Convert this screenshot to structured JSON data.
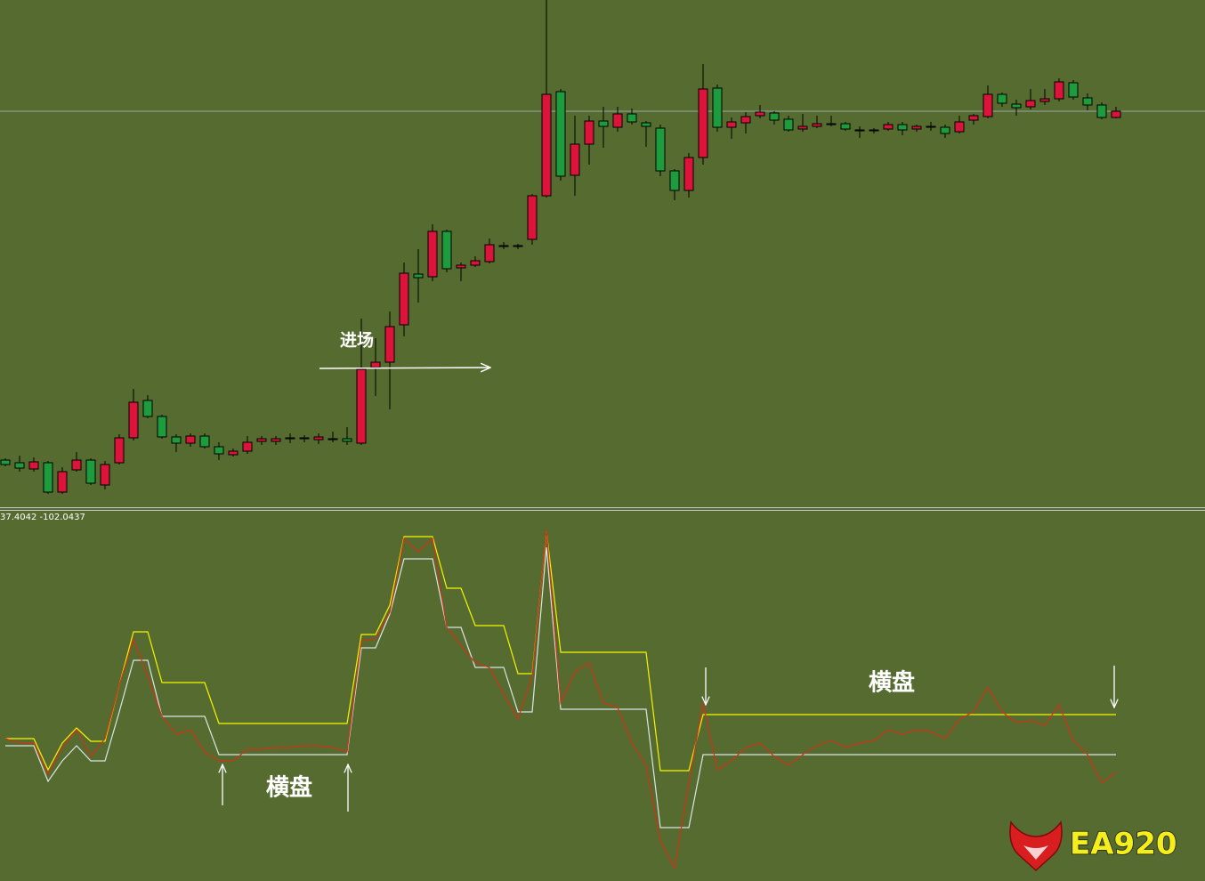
{
  "chart_data": [
    {
      "type": "candlestick",
      "ylim": [
        0,
        570
      ],
      "up_color": "#dc143c",
      "down_color": "#1e9b3c",
      "reference_line": 445,
      "candles": [
        [
          53,
          55,
          46,
          48
        ],
        [
          50,
          58,
          40,
          44
        ],
        [
          43,
          56,
          40,
          51
        ],
        [
          50,
          52,
          15,
          17
        ],
        [
          17,
          45,
          15,
          40
        ],
        [
          42,
          62,
          40,
          53
        ],
        [
          53,
          55,
          25,
          27
        ],
        [
          25,
          52,
          20,
          48
        ],
        [
          50,
          82,
          48,
          78
        ],
        [
          78,
          133,
          75,
          118
        ],
        [
          120,
          126,
          100,
          102
        ],
        [
          102,
          104,
          77,
          79
        ],
        [
          79,
          82,
          62,
          72
        ],
        [
          72,
          83,
          68,
          80
        ],
        [
          80,
          83,
          66,
          68
        ],
        [
          68,
          73,
          53,
          60
        ],
        [
          59,
          66,
          57,
          63
        ],
        [
          63,
          80,
          60,
          73
        ],
        [
          74,
          80,
          70,
          77
        ],
        [
          74,
          80,
          70,
          77
        ],
        [
          77,
          83,
          72,
          78
        ],
        [
          77,
          81,
          73,
          78
        ],
        [
          76,
          83,
          71,
          79
        ],
        [
          77,
          85,
          73,
          77
        ],
        [
          77,
          90,
          70,
          74
        ],
        [
          72,
          212,
          70,
          155
        ],
        [
          157,
          190,
          125,
          163
        ],
        [
          163,
          220,
          110,
          203
        ],
        [
          205,
          275,
          192,
          263
        ],
        [
          262,
          290,
          230,
          258
        ],
        [
          259,
          318,
          254,
          310
        ],
        [
          310,
          312,
          264,
          268
        ],
        [
          269,
          275,
          254,
          272
        ],
        [
          272,
          282,
          270,
          277
        ],
        [
          276,
          302,
          274,
          295
        ],
        [
          294,
          298,
          290,
          294
        ],
        [
          294,
          296,
          290,
          294
        ],
        [
          301,
          352,
          295,
          350
        ],
        [
          350,
          570,
          348,
          464
        ],
        [
          467,
          470,
          367,
          372
        ],
        [
          373,
          440,
          350,
          408
        ],
        [
          408,
          440,
          385,
          434
        ],
        [
          434,
          450,
          404,
          428
        ],
        [
          427,
          450,
          422,
          442
        ],
        [
          442,
          448,
          430,
          433
        ],
        [
          432,
          434,
          405,
          428
        ],
        [
          426,
          430,
          372,
          378
        ],
        [
          378,
          380,
          345,
          356
        ],
        [
          356,
          398,
          348,
          393
        ],
        [
          393,
          498,
          385,
          470
        ],
        [
          471,
          475,
          422,
          427
        ],
        [
          427,
          438,
          414,
          433
        ],
        [
          432,
          444,
          420,
          439
        ],
        [
          440,
          452,
          437,
          444
        ],
        [
          443,
          445,
          430,
          435
        ],
        [
          436,
          440,
          422,
          424
        ],
        [
          425,
          442,
          422,
          428
        ],
        [
          428,
          440,
          426,
          431
        ],
        [
          431,
          440,
          428,
          431
        ],
        [
          431,
          433,
          423,
          425
        ],
        [
          424,
          428,
          415,
          424
        ],
        [
          424,
          426,
          420,
          424
        ],
        [
          425,
          433,
          423,
          430
        ],
        [
          430,
          433,
          418,
          424
        ],
        [
          425,
          430,
          422,
          428
        ],
        [
          428,
          433,
          423,
          428
        ],
        [
          427,
          430,
          415,
          420
        ],
        [
          422,
          440,
          420,
          433
        ],
        [
          435,
          442,
          430,
          440
        ],
        [
          439,
          474,
          437,
          464
        ],
        [
          464,
          466,
          450,
          454
        ],
        [
          453,
          458,
          440,
          449
        ],
        [
          450,
          470,
          447,
          457
        ],
        [
          456,
          470,
          452,
          459
        ],
        [
          459,
          482,
          456,
          478
        ],
        [
          477,
          480,
          458,
          461
        ],
        [
          460,
          465,
          446,
          452
        ],
        [
          452,
          455,
          436,
          438
        ],
        [
          438,
          450,
          437,
          445
        ]
      ]
    },
    {
      "type": "line",
      "label": "37.4042 -102.0437",
      "ylim": [
        10,
        427
      ],
      "series": [
        {
          "color": "#f5f500",
          "values": [
            170,
            170,
            170,
            135,
            165,
            182,
            167,
            167,
            230,
            290,
            290,
            233,
            233,
            233,
            233,
            187,
            187,
            187,
            187,
            187,
            187,
            187,
            187,
            187,
            187,
            287,
            287,
            320,
            397,
            397,
            397,
            339,
            339,
            297,
            297,
            297,
            243,
            243,
            403,
            267,
            267,
            267,
            267,
            267,
            267,
            267,
            134,
            134,
            134,
            197,
            197,
            197,
            197,
            197,
            197,
            197,
            197,
            197,
            197,
            197,
            197,
            197,
            197,
            197,
            197,
            197,
            197,
            197,
            197,
            197,
            197,
            197,
            197,
            197,
            197,
            197,
            197,
            197,
            197
          ]
        },
        {
          "color": "#d8e6e6",
          "values": [
            162,
            162,
            162,
            122,
            145,
            162,
            145,
            145,
            200,
            258,
            258,
            195,
            195,
            195,
            195,
            152,
            152,
            152,
            152,
            152,
            152,
            152,
            152,
            152,
            152,
            272,
            272,
            310,
            372,
            372,
            372,
            295,
            295,
            250,
            250,
            250,
            200,
            200,
            385,
            203,
            203,
            203,
            203,
            203,
            203,
            203,
            70,
            70,
            70,
            152,
            152,
            152,
            152,
            152,
            152,
            152,
            152,
            152,
            152,
            152,
            152,
            152,
            152,
            152,
            152,
            152,
            152,
            152,
            152,
            152,
            152,
            152,
            152,
            152,
            152,
            152,
            152,
            152,
            152
          ]
        },
        {
          "color": "#cc3516",
          "values": [
            170,
            165,
            165,
            130,
            160,
            180,
            150,
            170,
            230,
            282,
            240,
            195,
            175,
            180,
            155,
            145,
            145,
            158,
            158,
            160,
            160,
            162,
            162,
            160,
            155,
            280,
            282,
            312,
            395,
            380,
            395,
            295,
            275,
            255,
            250,
            220,
            192,
            240,
            405,
            210,
            245,
            255,
            210,
            205,
            165,
            140,
            55,
            25,
            120,
            210,
            135,
            145,
            160,
            165,
            150,
            140,
            152,
            162,
            168,
            160,
            165,
            168,
            180,
            175,
            180,
            178,
            170,
            192,
            200,
            228,
            200,
            188,
            190,
            185,
            208,
            168,
            152,
            120,
            132
          ]
        }
      ]
    }
  ],
  "annotations": {
    "entry": "进场",
    "range_1": "横盘",
    "range_2": "横盘"
  },
  "logo": "EA920"
}
